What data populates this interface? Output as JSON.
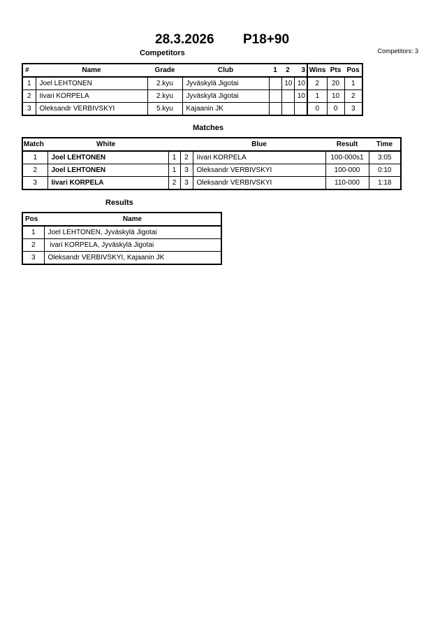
{
  "header": {
    "date": "28.3.2026",
    "category": "P18+90",
    "competitors_count_label": "Competitors: 3"
  },
  "competitors": {
    "title": "Competitors",
    "columns": [
      "#",
      "Name",
      "Grade",
      "Club",
      "1",
      "2",
      "3",
      "Wins",
      "Pts",
      "Pos"
    ],
    "rows": [
      {
        "num": "1",
        "name": "Joel LEHTONEN",
        "grade": "2.kyu",
        "club": "Jyväskylä Jigotai",
        "s1": "",
        "s2": "10",
        "s3": "10",
        "wins": "2",
        "pts": "20",
        "pos": "1"
      },
      {
        "num": "2",
        "name": "Iivari KORPELA",
        "grade": "2.kyu",
        "club": "Jyväskylä Jigotai",
        "s1": "",
        "s2": "",
        "s3": "10",
        "wins": "1",
        "pts": "10",
        "pos": "2"
      },
      {
        "num": "3",
        "name": "Oleksandr VERBIVSKYI",
        "grade": "5.kyu",
        "club": "Kajaanin JK",
        "s1": "",
        "s2": "",
        "s3": "",
        "wins": "0",
        "pts": "0",
        "pos": "3"
      }
    ]
  },
  "matches": {
    "title": "Matches",
    "columns": [
      "Match",
      "White",
      "Blue",
      "Result",
      "Time"
    ],
    "rows": [
      {
        "match": "1",
        "white": "Joel LEHTONEN",
        "wnum": "1",
        "bnum": "2",
        "blue": "Iivari KORPELA",
        "result": "100-000s1",
        "time": "3:05"
      },
      {
        "match": "2",
        "white": "Joel LEHTONEN",
        "wnum": "1",
        "bnum": "3",
        "blue": "Oleksandr VERBIVSKYI",
        "result": "100-000",
        "time": "0:10"
      },
      {
        "match": "3",
        "white": "Iivari KORPELA",
        "wnum": "2",
        "bnum": "3",
        "blue": "Oleksandr VERBIVSKYI",
        "result": "110-000",
        "time": "1:18"
      }
    ]
  },
  "results": {
    "title": "Results",
    "columns": [
      "Pos",
      "Name"
    ],
    "rows": [
      {
        "pos": "1",
        "name": "Joel LEHTONEN, Jyväskylä Jigotai"
      },
      {
        "pos": "2",
        "name": " ivari KORPELA, Jyväskylä Jigotai"
      },
      {
        "pos": "3",
        "name": "Oleksandr VERBIVSKYI, Kajaanin JK"
      }
    ]
  }
}
